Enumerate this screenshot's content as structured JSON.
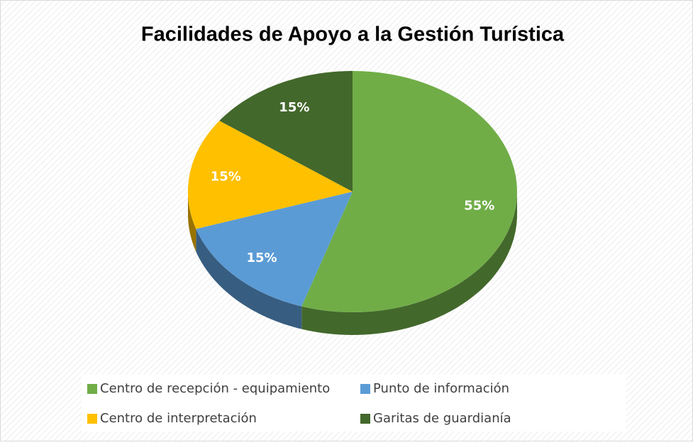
{
  "chart_data": {
    "type": "pie",
    "title": "Facilidades de Apoyo a la Gestión Turística",
    "categories": [
      "Centro de recepción - equipamiento",
      "Punto de información",
      "Centro de interpretación",
      "Garitas de guardianía"
    ],
    "values": [
      55,
      15,
      15,
      15
    ],
    "value_labels": [
      "55%",
      "15%",
      "15%",
      "15%"
    ],
    "colors": [
      "#70ad47",
      "#5b9bd5",
      "#ffc000",
      "#43682b"
    ],
    "legend": "bottom"
  }
}
